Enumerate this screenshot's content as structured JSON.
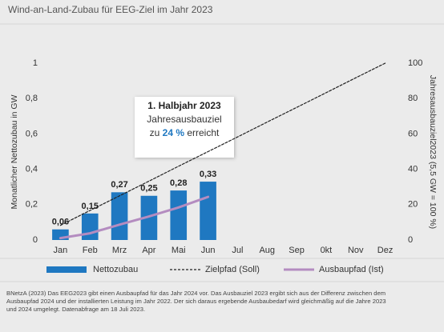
{
  "chart_data": {
    "type": "bar",
    "title": "Wind-an-Land-Zubau für EEG-Ziel im Jahr 2023",
    "categories": [
      "Jan",
      "Feb",
      "Mrz",
      "Apr",
      "Mai",
      "Jun",
      "Jul",
      "Aug",
      "Sep",
      "0kt",
      "Nov",
      "Dez"
    ],
    "series": [
      {
        "name": "Nettozubau",
        "color": "#1f78c1",
        "values": [
          0.06,
          0.15,
          0.27,
          0.25,
          0.28,
          0.33,
          null,
          null,
          null,
          null,
          null,
          null
        ],
        "value_labels": [
          "0,06",
          "0,15",
          "0,27",
          "0,25",
          "0,28",
          "0,33",
          null,
          null,
          null,
          null,
          null,
          null
        ]
      },
      {
        "name": "Zielpfad (Soll)",
        "type": "line",
        "dashed": true,
        "axis": "y2",
        "color": "#222222",
        "values": [
          8.3,
          16.7,
          25,
          33.3,
          41.7,
          50,
          58.3,
          66.7,
          75,
          83.3,
          91.7,
          100
        ]
      },
      {
        "name": "Ausbaupfad (Ist)",
        "type": "line",
        "axis": "y2",
        "color": "#b48cc0",
        "values": [
          1.1,
          3.8,
          8.7,
          13.3,
          18.4,
          24.4,
          null,
          null,
          null,
          null,
          null,
          null
        ]
      }
    ],
    "ylabel": "Monatlicher Nettozubau in GW",
    "y2label": "Jahresausbauziel2023 (5,5  GW = 100 %)",
    "ylim": [
      0,
      1
    ],
    "yticks": [
      0,
      {
        "value": 0.2,
        "label": "0,2"
      },
      {
        "value": 0.4,
        "label": "0,4"
      },
      {
        "value": 0.6,
        "label": "0,6"
      },
      {
        "value": 0.8,
        "label": "0,8"
      },
      1
    ],
    "y2lim": [
      0,
      100
    ],
    "y2ticks": [
      0,
      20,
      40,
      60,
      80,
      100
    ],
    "grid": false,
    "annotation": {
      "heading": "1. Halbjahr 2023",
      "line2": "Jahresausbauziel",
      "pre": "zu ",
      "highlight": "24 %",
      "post": " erreicht"
    },
    "source": [
      "BNetzA (2023) Das EEG2023 gibt einen Ausbaupfad für das Jahr 2024 vor. Das Ausbauziel 2023 ergibt sich aus der Differenz zwischen dem",
      "Ausbaupfad 2024 und der installierten Leistung im Jahr 2022. Der sich daraus ergebende Ausbaubedarf wird gleichmäßig auf die Jahre 2023",
      "und 2024 umgelegt. Datenabfrage am 18 Juli 2023."
    ]
  }
}
